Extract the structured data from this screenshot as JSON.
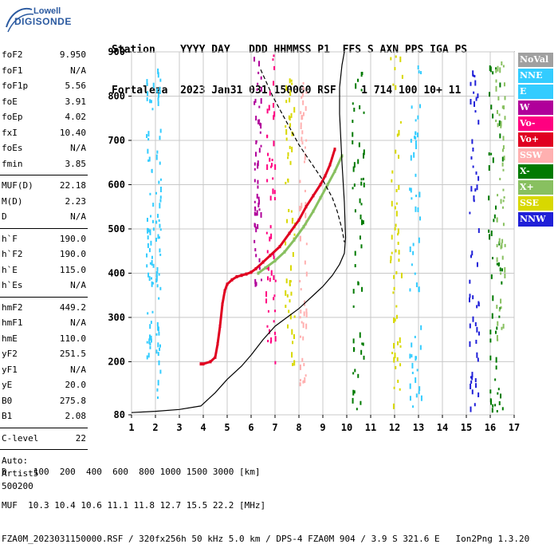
{
  "logo": {
    "line1": "Lowell",
    "line2": "DIGISONDE"
  },
  "header": {
    "labels": "Station    YYYY DAY   DDD HHMMSS P1  FFS S AXN PPS IGA PS",
    "values": "Fortaleza  2023 Jan31 031 150000 RSF    1 714 100 10+ 11"
  },
  "params": {
    "group1": [
      {
        "name": "foF2",
        "value": "9.950"
      },
      {
        "name": "foF1",
        "value": "N/A"
      },
      {
        "name": "foF1p",
        "value": "5.56"
      },
      {
        "name": "foE",
        "value": "3.91"
      },
      {
        "name": "foEp",
        "value": "4.02"
      },
      {
        "name": "fxI",
        "value": "10.40"
      },
      {
        "name": "foEs",
        "value": "N/A"
      },
      {
        "name": "fmin",
        "value": "3.85"
      }
    ],
    "group2": [
      {
        "name": "MUF(D)",
        "value": "22.18"
      },
      {
        "name": "M(D)",
        "value": "2.23"
      },
      {
        "name": "D",
        "value": "N/A"
      }
    ],
    "group3": [
      {
        "name": "h`F",
        "value": "190.0"
      },
      {
        "name": "h`F2",
        "value": "190.0"
      },
      {
        "name": "h`E",
        "value": "115.0"
      },
      {
        "name": "h`Es",
        "value": "N/A"
      }
    ],
    "group4": [
      {
        "name": "hmF2",
        "value": "449.2"
      },
      {
        "name": "hmF1",
        "value": "N/A"
      },
      {
        "name": "hmE",
        "value": "110.0"
      },
      {
        "name": "yF2",
        "value": "251.5"
      },
      {
        "name": "yF1",
        "value": "N/A"
      },
      {
        "name": "yE",
        "value": "20.0"
      },
      {
        "name": "B0",
        "value": "275.8"
      },
      {
        "name": "B1",
        "value": "2.08"
      }
    ],
    "clevel": {
      "name": "C-level",
      "value": "22"
    },
    "auto": [
      "Auto:",
      "Artist5",
      "500200"
    ]
  },
  "legend": [
    {
      "label": "NoVal",
      "color": "#a0a0a0"
    },
    {
      "label": "NNE",
      "color": "#33ccff"
    },
    {
      "label": "E",
      "color": "#33ccff"
    },
    {
      "label": "W",
      "color": "#b0009a"
    },
    {
      "label": "Vo-",
      "color": "#ff0080"
    },
    {
      "label": "Vo+",
      "color": "#e00020"
    },
    {
      "label": "SSW",
      "color": "#ffb0b0"
    },
    {
      "label": "X-",
      "color": "#007a00"
    },
    {
      "label": "X+",
      "color": "#88c060"
    },
    {
      "label": "SSE",
      "color": "#d8d800"
    },
    {
      "label": "NNW",
      "color": "#2020d8"
    }
  ],
  "footer": {
    "line1": "D     100  200  400  600  800 1000 1500 3000 [km]",
    "line2": "MUF  10.3 10.4 10.6 11.1 11.8 12.7 15.5 22.2 [MHz]",
    "line3": "FZA0M_2023031150000.RSF / 320fx256h 50 kHz 5.0 km / DPS-4 FZA0M 904 / 3.9 S 321.6 E   Ion2Png 1.3.20"
  },
  "chart_data": {
    "type": "scatter",
    "title": "",
    "xlabel": "",
    "ylabel": "",
    "xlim": [
      1,
      17
    ],
    "ylim": [
      80,
      900
    ],
    "x_ticks": [
      1,
      2,
      3,
      4,
      5,
      6,
      7,
      8,
      9,
      10,
      11,
      12,
      13,
      14,
      15,
      16,
      17
    ],
    "y_ticks": [
      80,
      200,
      300,
      400,
      500,
      600,
      700,
      800,
      900
    ],
    "grid": true,
    "series": [
      {
        "name": "Vo+",
        "color": "#e00020",
        "x": [
          3.9,
          4.0,
          4.3,
          4.5,
          4.6,
          4.7,
          4.8,
          4.9,
          5.0,
          5.2,
          5.4,
          5.6,
          5.8,
          6.0,
          6.2,
          6.5,
          6.8,
          7.2,
          7.6,
          8.0,
          8.3,
          8.6,
          8.9,
          9.1,
          9.3,
          9.5
        ],
        "y": [
          195,
          195,
          200,
          210,
          240,
          280,
          330,
          360,
          375,
          385,
          392,
          395,
          398,
          402,
          410,
          425,
          440,
          460,
          490,
          520,
          550,
          575,
          600,
          620,
          645,
          680
        ]
      },
      {
        "name": "X+",
        "color": "#88c060",
        "x": [
          6.3,
          6.6,
          7.0,
          7.4,
          7.8,
          8.2,
          8.6,
          8.9,
          9.2,
          9.5,
          9.8
        ],
        "y": [
          400,
          412,
          428,
          448,
          475,
          505,
          540,
          570,
          600,
          630,
          665
        ]
      },
      {
        "name": "true-height-profile",
        "color": "#000000",
        "x": [
          1.0,
          2.0,
          3.0,
          3.9,
          4.5,
          5.0,
          5.6,
          6.0,
          6.5,
          7.0,
          7.5,
          8.0,
          8.5,
          9.0,
          9.4,
          9.7,
          9.9,
          9.95,
          9.9,
          9.8,
          9.7,
          9.7,
          9.8,
          9.9
        ],
        "y": [
          85,
          88,
          92,
          100,
          130,
          160,
          190,
          215,
          250,
          280,
          300,
          320,
          345,
          370,
          395,
          420,
          445,
          480,
          560,
          650,
          760,
          820,
          870,
          900
        ]
      },
      {
        "name": "dashed-profile",
        "color": "#000000",
        "x": [
          6.4,
          6.9,
          7.5,
          8.0,
          8.5,
          9.0,
          9.4,
          9.6,
          9.8,
          9.9
        ],
        "y": [
          860,
          800,
          740,
          690,
          650,
          610,
          570,
          540,
          500,
          470
        ]
      }
    ]
  }
}
